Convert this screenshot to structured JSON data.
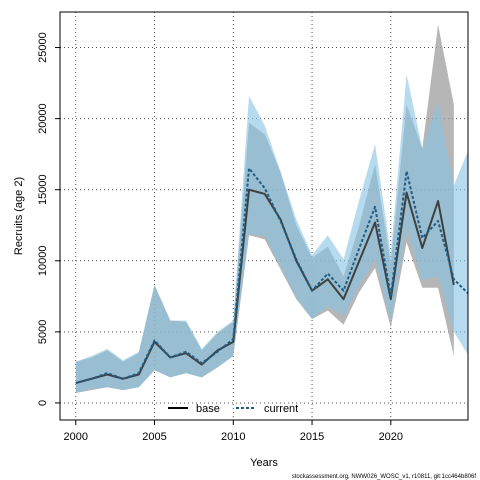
{
  "chart_data": {
    "type": "line",
    "xlabel": "Years",
    "ylabel": "Recruits (age 2)",
    "xlim": [
      1999,
      2024.9
    ],
    "ylim": [
      -1200,
      27500
    ],
    "x_ticks": [
      2000,
      2005,
      2010,
      2015,
      2020
    ],
    "y_ticks": [
      0,
      5000,
      10000,
      15000,
      20000,
      25000
    ],
    "grid": true,
    "legend_position": "bottom-center",
    "footer": "stockassessment.org, NWW026_WOSC_v1, r10811, git:1cc464b806f",
    "x": [
      2000,
      2001,
      2002,
      2003,
      2004,
      2005,
      2006,
      2007,
      2008,
      2009,
      2010,
      2011,
      2012,
      2013,
      2014,
      2015,
      2016,
      2017,
      2018,
      2019,
      2020,
      2021,
      2022,
      2023,
      2024,
      2025
    ],
    "series": [
      {
        "name": "base",
        "color": "#404040",
        "band_color": "#9e9e9e",
        "line": "solid",
        "x": [
          2000,
          2001,
          2002,
          2003,
          2004,
          2005,
          2006,
          2007,
          2008,
          2009,
          2010,
          2011,
          2012,
          2013,
          2014,
          2015,
          2016,
          2017,
          2018,
          2019,
          2020,
          2021,
          2022,
          2023,
          2024
        ],
        "values": [
          1400,
          1700,
          2000,
          1700,
          2000,
          4300,
          3200,
          3500,
          2700,
          3700,
          4300,
          15000,
          14700,
          12900,
          10000,
          7900,
          8700,
          7300,
          10000,
          12700,
          7300,
          14800,
          10900,
          14200,
          8300
        ],
        "lower": [
          700,
          900,
          1100,
          900,
          1100,
          2300,
          1800,
          2100,
          1800,
          2500,
          3300,
          11800,
          11500,
          9400,
          7300,
          5900,
          6500,
          5500,
          7800,
          9500,
          5300,
          11300,
          8100,
          8100,
          3300
        ],
        "upper": [
          2900,
          3200,
          3700,
          2900,
          3500,
          8300,
          5800,
          5700,
          3700,
          4900,
          5700,
          19700,
          18900,
          16200,
          12500,
          10200,
          11000,
          8900,
          12500,
          16800,
          9800,
          21000,
          17900,
          26600,
          21000
        ]
      },
      {
        "name": "current",
        "color": "#1f5d86",
        "band_color": "#87c3e2",
        "line": "dotted",
        "x": [
          2000,
          2001,
          2002,
          2003,
          2004,
          2005,
          2006,
          2007,
          2008,
          2009,
          2010,
          2011,
          2012,
          2013,
          2014,
          2015,
          2016,
          2017,
          2018,
          2019,
          2020,
          2021,
          2022,
          2023,
          2024,
          2025
        ],
        "values": [
          1400,
          1700,
          2100,
          1700,
          2100,
          4400,
          3200,
          3600,
          2800,
          3600,
          4500,
          16500,
          15100,
          12800,
          10100,
          7900,
          9100,
          7900,
          10900,
          13800,
          7500,
          16300,
          11600,
          12800,
          8700,
          7600
        ],
        "lower": [
          700,
          1000,
          1100,
          900,
          1100,
          2300,
          1800,
          2100,
          1800,
          2500,
          3300,
          11900,
          11700,
          9600,
          7400,
          5900,
          6800,
          6100,
          8300,
          10100,
          5700,
          12300,
          8600,
          8900,
          5000,
          3200
        ],
        "upper": [
          2900,
          3300,
          3800,
          3000,
          3600,
          8300,
          5800,
          5800,
          3800,
          5000,
          5800,
          21600,
          19500,
          16300,
          12900,
          10400,
          11800,
          10100,
          14300,
          18200,
          10500,
          23100,
          17900,
          21200,
          15300,
          18000
        ]
      }
    ]
  }
}
